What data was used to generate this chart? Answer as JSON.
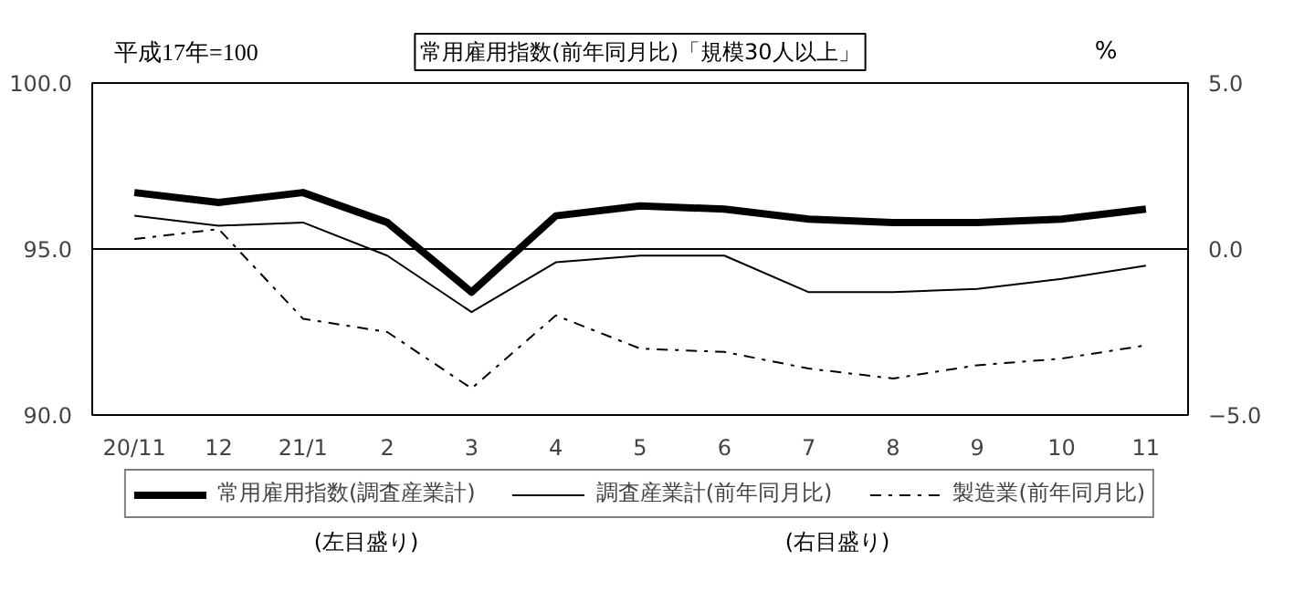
{
  "chart_data": {
    "type": "line",
    "title": "常用雇用指数(前年同月比)「規模30人以上」",
    "ylabel": "平成17年=100",
    "y2label": "%",
    "categories": [
      "20/11",
      "12",
      "21/1",
      "2",
      "3",
      "4",
      "5",
      "6",
      "7",
      "8",
      "9",
      "10",
      "11"
    ],
    "series": [
      {
        "name": "常用雇用指数(調査産業計)",
        "color": "#000000",
        "values": [
          96.7,
          96.4,
          96.7,
          95.8,
          93.7,
          96.0,
          96.3,
          96.2,
          95.9,
          95.8,
          95.8,
          95.9,
          96.2
        ]
      },
      {
        "name": "調査産業計(前年同月比)",
        "color": "#000000",
        "axis": "y2",
        "values": [
          1.0,
          0.7,
          0.8,
          -0.2,
          -1.9,
          -0.4,
          -0.2,
          -0.2,
          -1.3,
          -1.3,
          -1.2,
          -0.9,
          -0.5
        ]
      },
      {
        "name": "製造業(前年同月比)",
        "color": "#000000",
        "axis": "y2",
        "line_style": "dashed",
        "values": [
          0.3,
          0.6,
          -2.1,
          -2.5,
          -4.2,
          -2.0,
          -3.0,
          -3.1,
          -3.6,
          -3.9,
          -3.5,
          -3.3,
          -2.9
        ]
      }
    ],
    "ylim": [
      90,
      100
    ],
    "yticks": [
      {
        "value": 90,
        "label": "90.0"
      },
      {
        "value": 95,
        "label": "95.0"
      },
      {
        "value": 100,
        "label": "100.0"
      }
    ],
    "y2lim": [
      -5,
      5
    ],
    "y2ticks": [
      {
        "value": -5,
        "label": "−5.0"
      },
      {
        "value": 0,
        "label": "0.0"
      },
      {
        "value": 5,
        "label": "5.0"
      }
    ],
    "ref_lines": [
      {
        "axis": "y",
        "value": 95,
        "color": "#000000"
      }
    ],
    "annotations": [
      "(左目盛り)",
      "(右目盛り)"
    ],
    "grid": false,
    "legend": "bottom"
  }
}
